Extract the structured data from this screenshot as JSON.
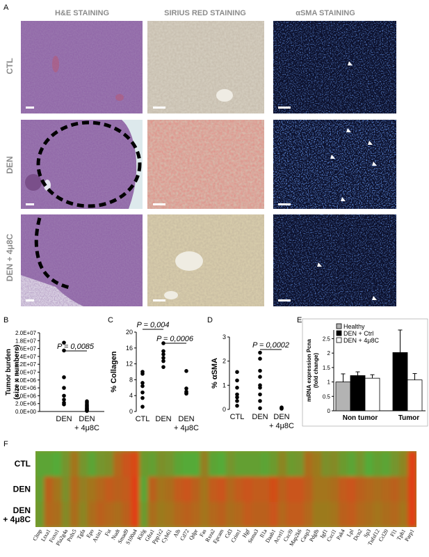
{
  "panel_letters": [
    "A",
    "B",
    "C",
    "D",
    "E",
    "F"
  ],
  "panel_a": {
    "col_headers": [
      "H&E STAINING",
      "SIRIUS RED STAINING",
      "αSMA STAINING"
    ],
    "row_labels": [
      "CTL",
      "DEN",
      "DEN + 4μ8C"
    ]
  },
  "chart_data": [
    {
      "panel": "B",
      "type": "scatter",
      "ylabel": "Tumor burden\n(size x numbers)",
      "ytick_labels": [
        "0.0E+00",
        "2.0E+06",
        "4.0E+06",
        "6.0E+06",
        "8.0E+06",
        "1.0E+07",
        "1.2E+07",
        "1.4E+07",
        "1.6E+07",
        "1.8E+07",
        "2.0E+07"
      ],
      "ylim": [
        0,
        20000000
      ],
      "categories": [
        "DEN",
        "+ 4μ8C"
      ],
      "category_labels": [
        [
          "DEN"
        ],
        [
          "DEN",
          "+ 4μ8C"
        ]
      ],
      "points": [
        [
          17500000,
          15500000,
          8700000,
          6000000,
          4000000,
          3000000,
          2200000,
          1800000
        ],
        [
          2600000,
          2200000,
          1800000,
          1500000,
          1300000,
          1000000,
          800000,
          600000,
          400000,
          250000,
          150000
        ]
      ],
      "annotations": [
        {
          "text": "P = 0,0085",
          "between": [
            0,
            1
          ]
        }
      ]
    },
    {
      "panel": "C",
      "type": "scatter",
      "ylabel": "% Collagen",
      "ytick_labels": [
        "0",
        "4",
        "8",
        "12",
        "16",
        "20"
      ],
      "ylim": [
        0,
        20
      ],
      "categories": [
        "CTL",
        "DEN",
        "DEN + 4μ8C"
      ],
      "category_labels": [
        [
          "CTL"
        ],
        [
          "DEN"
        ],
        [
          "DEN",
          "+ 4μ8C"
        ]
      ],
      "points": [
        [
          10,
          9.5,
          7.2,
          6.4,
          4.8,
          3.4,
          1.2
        ],
        [
          17.2,
          15.2,
          14.4,
          13.5,
          12.7,
          11.2
        ],
        [
          10.2,
          5.8,
          5.0,
          4.7,
          4.5
        ]
      ],
      "annotations": [
        {
          "text": "P = 0,004",
          "between": [
            0,
            1
          ]
        },
        {
          "text": "P = 0,0006",
          "between": [
            1,
            2
          ]
        }
      ]
    },
    {
      "panel": "D",
      "type": "scatter",
      "ylabel": "% αSMA",
      "ytick_labels": [
        "0",
        "1",
        "2",
        "3"
      ],
      "ylim": [
        0,
        3
      ],
      "categories": [
        "CTL",
        "DEN",
        "DEN + 4μ8C"
      ],
      "category_labels": [
        [
          "CTL"
        ],
        [
          "DEN"
        ],
        [
          "DEN",
          "+ 4μ8C"
        ]
      ],
      "points": [
        [
          1.55,
          1.2,
          0.9,
          0.62,
          0.5,
          0.35,
          0.15
        ],
        [
          2.35,
          2.1,
          1.6,
          1.35,
          1.0,
          0.9,
          0.62,
          0.35,
          0.05
        ],
        [
          0.08,
          0.05,
          0.03
        ]
      ],
      "annotations": [
        {
          "text": "P = 0,0002",
          "between": [
            1,
            2
          ]
        }
      ]
    },
    {
      "panel": "E",
      "type": "bar",
      "ylabel": "mRNA expression Pcna\n(fold change)",
      "ytick_labels": [
        "0",
        "0.5",
        "1",
        "1.5",
        "2",
        "2.5"
      ],
      "ylim": [
        0,
        2.8
      ],
      "categories": [
        "Non tumor",
        "Tumor"
      ],
      "series": [
        {
          "name": "Healthy",
          "color": "#b3b3b3",
          "values": [
            1.0,
            null
          ],
          "errors": [
            0.28,
            null
          ]
        },
        {
          "name": "DEN + Ctrl",
          "color": "#000000",
          "values": [
            1.22,
            2.02
          ],
          "errors": [
            0.13,
            0.78
          ]
        },
        {
          "name": "DEN + 4μ8C",
          "color": "#ffffff",
          "values": [
            1.13,
            1.07
          ],
          "errors": [
            0.12,
            0.22
          ]
        }
      ],
      "legend": "top-left"
    },
    {
      "panel": "F",
      "type": "heatmap",
      "rows": [
        "CTL",
        "DEN",
        "DEN\n+ 4μ8C"
      ],
      "genes": [
        "Cltnp",
        "Ltxa1",
        "Foxo1",
        "Pla2g4a",
        "Prdx5",
        "Tgfa",
        "Epo",
        "Axin1",
        "Fst",
        "Nudt",
        "Smad9",
        "S100a4",
        "Kitlg",
        "Gfra1",
        "Ppp1r2",
        "Cyb61",
        "Alb",
        "Cd72",
        "Qdpr",
        "Fas",
        "Rxra2",
        "Epcam",
        "Cd3",
        "Crim1",
        "Hgf",
        "Sema3",
        "Il1a",
        "Daab1",
        "Acvrl1",
        "Cxcl9",
        "Map2k6",
        "Casp3",
        "Pdgfb",
        "Igf1",
        "Cxcl1",
        "Pak4",
        "Lpl",
        "Dcn2",
        "Sp3",
        "Tnfsf12",
        "Ccl20",
        "Fl1",
        "Tph1",
        "Parp1"
      ],
      "values": [
        [
          -0.8,
          -0.8,
          -0.9,
          -0.5,
          0.1,
          -0.5,
          -0.8,
          -0.5,
          -0.4,
          0.3,
          0.6,
          0.8,
          -0.6,
          -0.7,
          -0.4,
          -0.5,
          -0.8,
          -0.9,
          -0.9,
          -0.1,
          -0.8,
          -0.9,
          -0.5,
          -0.7,
          -0.7,
          -0.7,
          -0.8,
          -0.6,
          -0.2,
          -0.6,
          -0.5,
          0.2,
          0.0,
          -0.4,
          -0.3,
          -0.6,
          -0.8,
          -0.5,
          -0.9,
          -0.7,
          -0.8,
          -0.5,
          -0.2,
          0.9
        ],
        [
          -0.7,
          0.4,
          0.1,
          -0.4,
          0.3,
          -0.1,
          0.1,
          0.3,
          0.5,
          0.4,
          0.5,
          0.9,
          -0.8,
          0.4,
          0.1,
          0.2,
          0.5,
          0.6,
          0.4,
          0.1,
          0.5,
          0.6,
          0.3,
          0.5,
          0.6,
          0.5,
          0.5,
          0.7,
          0.4,
          0.6,
          0.6,
          0.4,
          0.1,
          0.1,
          0.2,
          0.5,
          0.6,
          0.4,
          0.3,
          0.2,
          0.3,
          0.4,
          0.2,
          0.9
        ],
        [
          -0.6,
          0.3,
          0.2,
          -0.3,
          0.2,
          -0.2,
          0.2,
          0.4,
          0.3,
          0.2,
          0.4,
          0.9,
          -0.6,
          0.2,
          0.0,
          0.1,
          0.3,
          0.4,
          0.3,
          0.1,
          0.3,
          0.4,
          0.2,
          0.3,
          0.5,
          0.4,
          0.4,
          0.6,
          0.3,
          0.5,
          0.5,
          0.3,
          0.0,
          0.0,
          0.1,
          0.4,
          0.5,
          0.3,
          0.2,
          0.1,
          0.2,
          0.3,
          0.1,
          0.9
        ]
      ]
    }
  ],
  "colors": {
    "he": "#8e63a6",
    "sirius_ctl": "#d8d2c4",
    "sirius_den": "#d79b8a",
    "sirius_4u8c": "#dcd1ae",
    "sma": "#0b0f2a",
    "heat_low": "#4caf3a",
    "heat_mid": "#9c7a1f",
    "heat_high": "#e83b17"
  }
}
